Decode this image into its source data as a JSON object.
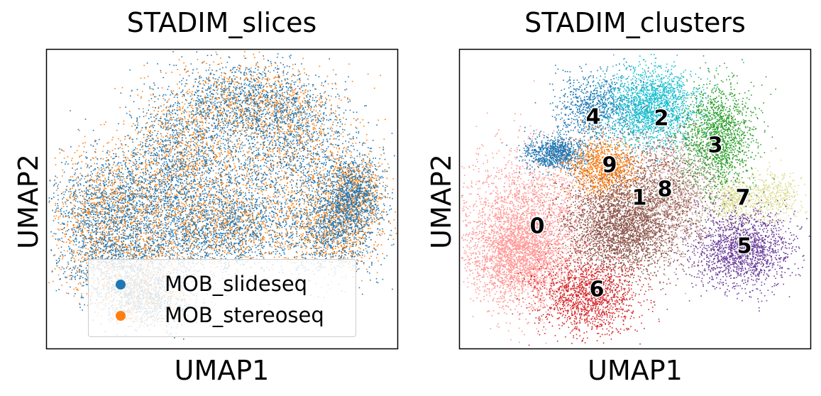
{
  "chart_data": [
    {
      "type": "scatter",
      "title": "STADIM_slices",
      "xlabel": "UMAP1",
      "ylabel": "UMAP2",
      "xticks": [],
      "yticks": [],
      "grid": false,
      "legend": {
        "placement": "lower-center",
        "entries": [
          {
            "name": "MOB_slideseq",
            "color": "#1f77b4"
          },
          {
            "name": "MOB_stereoseq",
            "color": "#ff7f0e"
          }
        ]
      },
      "series": [
        {
          "name": "MOB_slideseq",
          "color": "#1f77b4"
        },
        {
          "name": "MOB_stereoseq",
          "color": "#ff7f0e"
        }
      ]
    },
    {
      "type": "scatter",
      "title": "STADIM_clusters",
      "xlabel": "UMAP1",
      "ylabel": "UMAP2",
      "xticks": [],
      "yticks": [],
      "grid": false,
      "legend": {
        "placement": "on data"
      },
      "series": [
        {
          "name": "0",
          "color": "#ff9896"
        },
        {
          "name": "1",
          "color": "#8c564b"
        },
        {
          "name": "2",
          "color": "#17becf"
        },
        {
          "name": "3",
          "color": "#2ca02c"
        },
        {
          "name": "4",
          "color": "#1f77b4"
        },
        {
          "name": "5",
          "color": "#6a3d9a"
        },
        {
          "name": "6",
          "color": "#d62728"
        },
        {
          "name": "7",
          "color": "#dbdb8d"
        },
        {
          "name": "8",
          "color": "#c49c94"
        },
        {
          "name": "9",
          "color": "#ff7f0e"
        }
      ]
    }
  ]
}
